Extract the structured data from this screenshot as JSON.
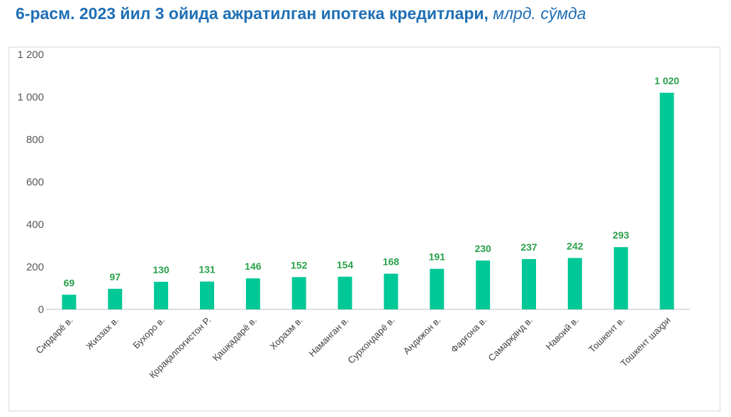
{
  "title": {
    "main": "6-расм. 2023 йил 3 ойида ажратилган ипотека кредитлари, ",
    "unit": "млрд. сўмда"
  },
  "colors": {
    "title": "#1f6fb5",
    "bar": "#00c896",
    "data_label": "#2aa14a",
    "axis_text": "#595959"
  },
  "chart_data": {
    "type": "bar",
    "title": "6-расм. 2023 йил 3 ойида ажратилган ипотека кредитлари, млрд. сўмда",
    "xlabel": "",
    "ylabel": "",
    "ylim": [
      0,
      1200
    ],
    "yticks": [
      0,
      200,
      400,
      600,
      800,
      1000,
      1200
    ],
    "ytick_labels": [
      "0",
      "200",
      "400",
      "600",
      "800",
      "1 000",
      "1 200"
    ],
    "grid": false,
    "categories": [
      "Сирдарё в.",
      "Жиззах в.",
      "Бухоро в.",
      "Қорақалпоғистон Р.",
      "Қашқадарё в.",
      "Хоразм в.",
      "Наманган в.",
      "Сурхондарё в.",
      "Андижон в.",
      "Фарғона в.",
      "Самарқанд в.",
      "Навоий в.",
      "Тошкент в.",
      "Тошкент шаҳри"
    ],
    "values": [
      69,
      97,
      130,
      131,
      146,
      152,
      154,
      168,
      191,
      230,
      237,
      242,
      293,
      1020
    ],
    "data_labels": [
      "69",
      "97",
      "130",
      "131",
      "146",
      "152",
      "154",
      "168",
      "191",
      "230",
      "237",
      "242",
      "293",
      "1 020"
    ]
  }
}
